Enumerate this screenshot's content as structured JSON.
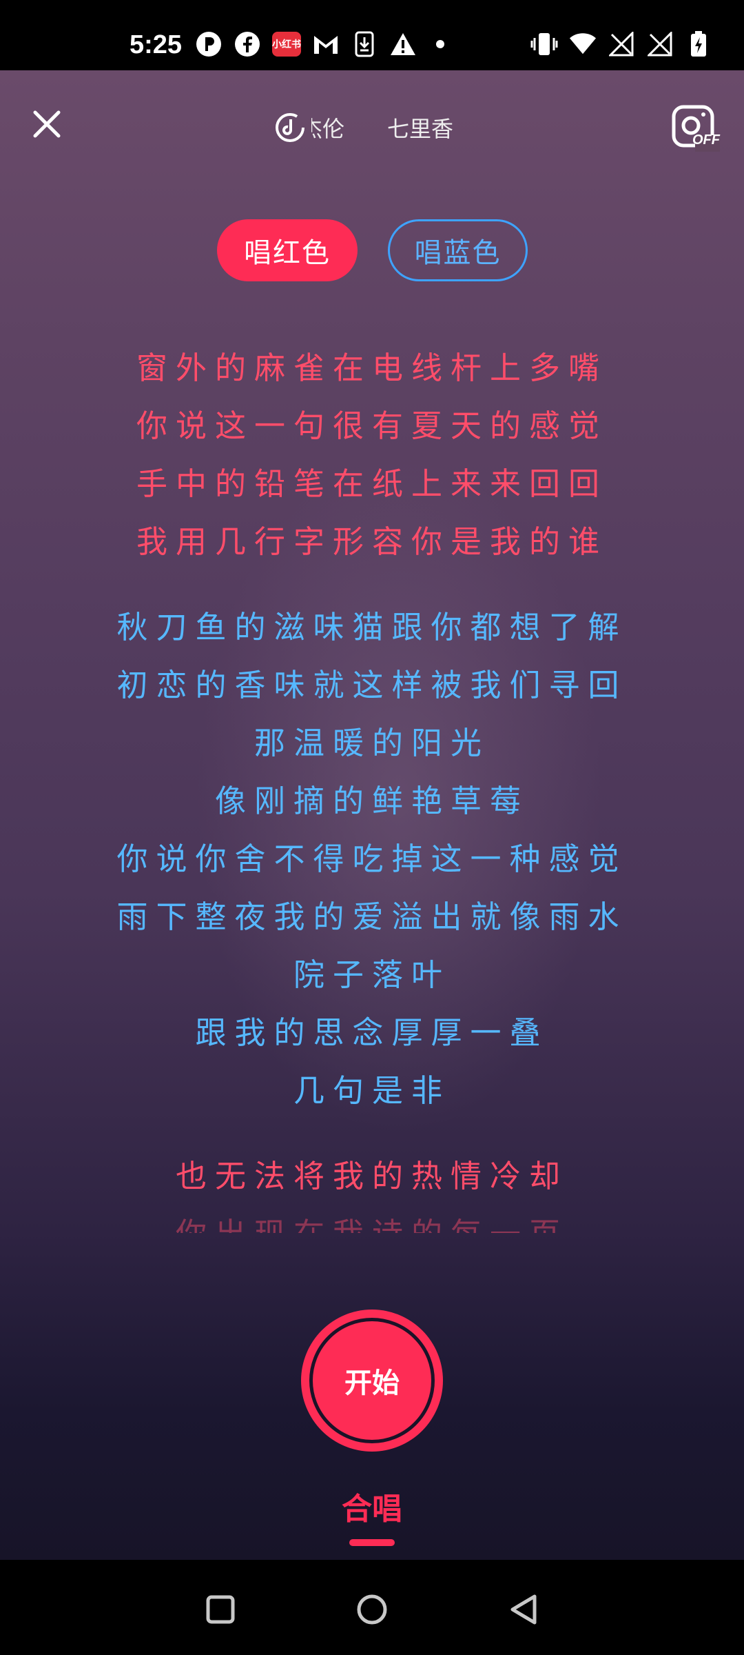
{
  "status_bar": {
    "time": "5:25",
    "badge_text": "小红书",
    "left_icons": [
      "p-icon",
      "facebook-icon",
      "xiaohongshu-icon",
      "gmail-icon",
      "download-icon",
      "warning-icon"
    ],
    "right_icons": [
      "vibrate-icon",
      "wifi-icon",
      "no-signal-icon",
      "no-signal-icon",
      "battery-charging-icon"
    ]
  },
  "header": {
    "artist": "周杰伦",
    "song_title": "七里香",
    "camera_state": "OFF"
  },
  "parts": {
    "red_label": "唱红色",
    "blue_label": "唱蓝色"
  },
  "lyrics": [
    {
      "text": "窗外的麻雀在电线杆上多嘴",
      "color": "red"
    },
    {
      "text": "你说这一句很有夏天的感觉",
      "color": "red"
    },
    {
      "text": "手中的铅笔在纸上来来回回",
      "color": "red"
    },
    {
      "text": "我用几行字形容你是我的谁",
      "color": "red"
    },
    {
      "text": "秋刀鱼的滋味猫跟你都想了解",
      "color": "blue"
    },
    {
      "text": "初恋的香味就这样被我们寻回",
      "color": "blue"
    },
    {
      "text": "那温暖的阳光",
      "color": "blue"
    },
    {
      "text": "像刚摘的鲜艳草莓",
      "color": "blue"
    },
    {
      "text": "你说你舍不得吃掉这一种感觉",
      "color": "blue"
    },
    {
      "text": "雨下整夜我的爱溢出就像雨水",
      "color": "blue"
    },
    {
      "text": "院子落叶",
      "color": "blue"
    },
    {
      "text": "跟我的思念厚厚一叠",
      "color": "blue"
    },
    {
      "text": "几句是非",
      "color": "blue"
    },
    {
      "text": "也无法将我的热情冷却",
      "color": "red"
    },
    {
      "text": "你出现在我诗的每一页",
      "color": "red"
    }
  ],
  "controls": {
    "start_label": "开始",
    "mode_label": "合唱"
  },
  "colors": {
    "accent_red": "#fe2c55",
    "lyric_red": "#ff4d6a",
    "lyric_blue": "#56b8ff"
  }
}
